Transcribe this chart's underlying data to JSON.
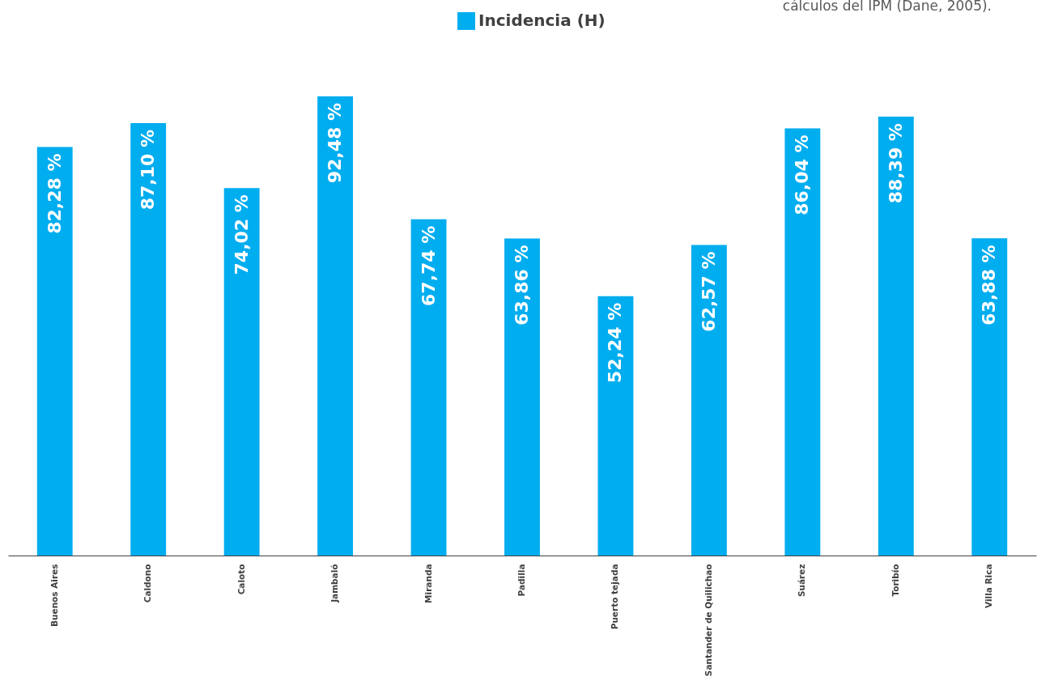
{
  "chart_data": {
    "type": "bar",
    "categories": [
      "Buenos Aires",
      "Caldono",
      "Caloto",
      "Jambaló",
      "Miranda",
      "Padilla",
      "Puerto tejada",
      "Santander de Quilichao",
      "Suárez",
      "Toribío",
      "Villa Rica"
    ],
    "series": [
      {
        "name": "Incidencia (H)",
        "color": "#00adef",
        "values": [
          82.28,
          87.1,
          74.02,
          92.48,
          67.74,
          63.86,
          52.24,
          62.57,
          86.04,
          88.39,
          63.88
        ],
        "value_labels": [
          "82,28 %",
          "87,10 %",
          "74,02 %",
          "92,48 %",
          "67,74 %",
          "63,86 %",
          "52,24 %",
          "62,57 %",
          "86,04 %",
          "88,39 %",
          "63,88 %"
        ]
      }
    ],
    "legend": "top",
    "grid": false,
    "annotations": [
      "cálculos del IPM (Dane, 2005)."
    ]
  }
}
